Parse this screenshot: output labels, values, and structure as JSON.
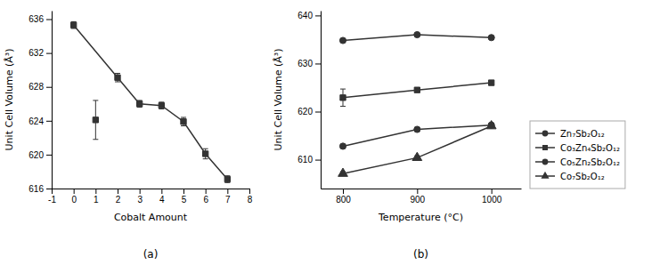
{
  "chart_data": [
    {
      "type": "line",
      "title": "(a)",
      "xlabel": "Cobalt Amount",
      "ylabel": "Unit Cell Volume (Å³)",
      "color": "#333333",
      "series": [
        {
          "x": [
            0,
            2,
            3,
            4,
            5,
            6,
            7
          ],
          "values": [
            635.3,
            629.1,
            626.0,
            625.8,
            623.9,
            620.1,
            617.1
          ],
          "errors": [
            0.4,
            0.5,
            0.4,
            0.4,
            0.5,
            0.6,
            0.4
          ],
          "marker": "square",
          "line_style": "solid"
        },
        {
          "type": "scatter",
          "x": [
            1
          ],
          "values": [
            624.1
          ],
          "errors": [
            2.3
          ],
          "marker": "square"
        }
      ],
      "xlim": [
        -1,
        8
      ],
      "ylim": [
        616,
        637
      ],
      "xticks": [
        -1,
        0,
        1,
        2,
        3,
        4,
        5,
        6,
        7,
        8
      ],
      "yticks": [
        616,
        620,
        624,
        628,
        632,
        636
      ]
    },
    {
      "type": "line",
      "title": "(b)",
      "xlabel": "Temperature (°C)",
      "ylabel": "Unit Cell Volume (Å³)",
      "color": "#333333",
      "legend": "lower right",
      "x": [
        800,
        900,
        1000
      ],
      "series": [
        {
          "name": "Zn₇Sb₂O₁₂",
          "values": [
            634.8,
            636.0,
            635.4
          ],
          "errors": [
            0.3,
            0.3,
            0.3
          ],
          "marker": "circle",
          "line_style": "solid"
        },
        {
          "name": "Co₃Zn₄Sb₂O₁₂",
          "values": [
            622.9,
            624.5,
            626.0
          ],
          "errors": [
            1.8,
            0.4,
            0.4
          ],
          "marker": "square",
          "line_style": "solid"
        },
        {
          "name": "Co₅Zn₂Sb₂O₁₂",
          "values": [
            612.8,
            616.3,
            617.2
          ],
          "errors": [
            0.4,
            0.4,
            0.4
          ],
          "marker": "circle",
          "line_style": "solid"
        },
        {
          "name": "Co₇Sb₂O₁₂",
          "values": [
            607.1,
            610.4,
            617.0
          ],
          "errors": [
            0.4,
            0.4,
            0.4
          ],
          "marker": "triangle",
          "line_style": "solid"
        }
      ],
      "xlim": [
        770,
        1040
      ],
      "ylim": [
        604,
        641
      ],
      "xticks": [
        800,
        900,
        1000
      ],
      "yticks": [
        610,
        620,
        630,
        640
      ]
    }
  ]
}
